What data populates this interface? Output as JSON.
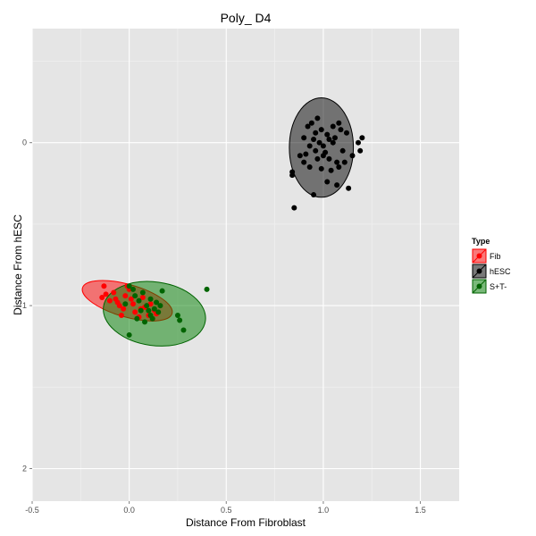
{
  "chart_data": {
    "type": "scatter",
    "title": "Poly_ D4",
    "xlabel": "Distance From Fibroblast",
    "ylabel": "Distance From hESC",
    "xlim": [
      -0.5,
      1.7
    ],
    "ylim": [
      2.2,
      -0.7
    ],
    "y_reversed": true,
    "x_ticks": [
      -0.5,
      0.0,
      0.5,
      1.0,
      1.5
    ],
    "x_tick_labels": [
      "-0.5",
      "0.0",
      "0.5",
      "1.0",
      "1.5"
    ],
    "y_ticks": [
      0,
      1,
      2
    ],
    "y_tick_labels": [
      "0",
      "1",
      "2"
    ],
    "grid": true,
    "panel_background": "#e5e5e5",
    "legend": {
      "title": "Type",
      "position": "right"
    },
    "series": [
      {
        "name": "Fib",
        "color": "#ff0000",
        "fill": "#ff0000",
        "ellipse": {
          "cx": -0.01,
          "cy": 0.97,
          "rx": 0.24,
          "ry": 0.1,
          "angle_deg": 16
        },
        "points": [
          [
            -0.13,
            0.88
          ],
          [
            -0.14,
            0.95
          ],
          [
            -0.12,
            0.93
          ],
          [
            -0.1,
            0.97
          ],
          [
            -0.08,
            0.92
          ],
          [
            -0.06,
            0.98
          ],
          [
            -0.05,
            1.0
          ],
          [
            -0.03,
            1.02
          ],
          [
            -0.02,
            0.94
          ],
          [
            0.0,
            0.9
          ],
          [
            0.01,
            0.96
          ],
          [
            0.03,
            1.04
          ],
          [
            0.05,
            1.07
          ],
          [
            0.07,
            0.95
          ],
          [
            0.08,
            1.01
          ],
          [
            0.1,
            1.06
          ],
          [
            0.12,
            1.08
          ],
          [
            0.13,
            1.03
          ],
          [
            -0.04,
            1.06
          ],
          [
            0.02,
            0.99
          ],
          [
            0.06,
            1.02
          ],
          [
            -0.01,
            0.88
          ],
          [
            0.11,
            0.99
          ],
          [
            0.14,
            1.05
          ],
          [
            -0.07,
            0.96
          ]
        ]
      },
      {
        "name": "hESC",
        "color": "#000000",
        "fill": "#000000",
        "ellipse": {
          "cx": 0.99,
          "cy": 0.03,
          "rx": 0.165,
          "ry": 0.305,
          "angle_deg": 0
        },
        "points": [
          [
            0.85,
            0.4
          ],
          [
            0.84,
            0.18
          ],
          [
            0.84,
            0.2
          ],
          [
            0.88,
            0.08
          ],
          [
            0.9,
            -0.03
          ],
          [
            0.91,
            0.07
          ],
          [
            0.93,
            0.15
          ],
          [
            0.92,
            -0.1
          ],
          [
            0.94,
            -0.12
          ],
          [
            0.95,
            -0.02
          ],
          [
            0.96,
            0.05
          ],
          [
            0.97,
            0.1
          ],
          [
            0.98,
            0.0
          ],
          [
            0.99,
            -0.08
          ],
          [
            1.0,
            0.02
          ],
          [
            1.01,
            0.06
          ],
          [
            1.02,
            -0.05
          ],
          [
            1.03,
            0.1
          ],
          [
            1.04,
            0.17
          ],
          [
            1.05,
            0.0
          ],
          [
            1.06,
            -0.03
          ],
          [
            1.07,
            0.12
          ],
          [
            1.08,
            0.15
          ],
          [
            1.09,
            -0.08
          ],
          [
            1.1,
            0.05
          ],
          [
            1.11,
            0.12
          ],
          [
            1.13,
            0.28
          ],
          [
            1.15,
            0.08
          ],
          [
            1.18,
            0.0
          ],
          [
            1.19,
            0.05
          ],
          [
            1.2,
            -0.03
          ],
          [
            0.95,
            0.32
          ],
          [
            1.07,
            0.26
          ],
          [
            1.02,
            0.24
          ],
          [
            0.97,
            -0.15
          ],
          [
            0.93,
            0.02
          ],
          [
            1.05,
            -0.1
          ],
          [
            1.0,
            0.08
          ],
          [
            0.96,
            -0.06
          ],
          [
            1.08,
            -0.12
          ],
          [
            0.9,
            0.12
          ],
          [
            1.12,
            -0.06
          ],
          [
            0.99,
            0.16
          ],
          [
            1.03,
            -0.02
          ]
        ]
      },
      {
        "name": "S+T-",
        "color": "#006400",
        "fill": "#008000",
        "ellipse": {
          "cx": 0.13,
          "cy": 1.05,
          "rx": 0.265,
          "ry": 0.195,
          "angle_deg": 8
        },
        "points": [
          [
            0.0,
            0.88
          ],
          [
            0.02,
            0.9
          ],
          [
            0.03,
            0.94
          ],
          [
            0.05,
            0.97
          ],
          [
            0.07,
            0.92
          ],
          [
            0.09,
            1.0
          ],
          [
            0.1,
            1.03
          ],
          [
            0.11,
            1.06
          ],
          [
            0.13,
            1.02
          ],
          [
            0.14,
            0.98
          ],
          [
            0.15,
            1.04
          ],
          [
            0.17,
            0.91
          ],
          [
            0.25,
            1.06
          ],
          [
            0.26,
            1.09
          ],
          [
            0.28,
            1.15
          ],
          [
            0.4,
            0.9
          ],
          [
            0.0,
            1.18
          ],
          [
            0.04,
            1.08
          ],
          [
            -0.02,
            0.99
          ],
          [
            0.08,
            1.1
          ],
          [
            0.12,
            1.08
          ],
          [
            0.16,
            1.0
          ],
          [
            0.06,
            1.03
          ],
          [
            0.11,
            0.96
          ]
        ]
      }
    ]
  }
}
